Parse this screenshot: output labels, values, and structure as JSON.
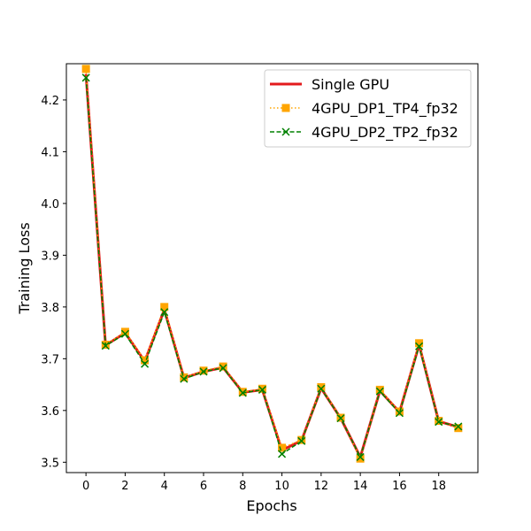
{
  "chart_data": {
    "type": "line",
    "xlabel": "Epochs",
    "ylabel": "Training Loss",
    "xlim": [
      -1,
      20
    ],
    "ylim": [
      3.48,
      4.27
    ],
    "xticks": [
      0,
      2,
      4,
      6,
      8,
      10,
      12,
      14,
      16,
      18
    ],
    "yticks": [
      3.5,
      3.6,
      3.7,
      3.8,
      3.9,
      4.0,
      4.1,
      4.2
    ],
    "ytick_labels": [
      "3.5",
      "3.6",
      "3.7",
      "3.8",
      "3.9",
      "4.0",
      "4.1",
      "4.2"
    ],
    "grid": false,
    "legend_position": "top-right",
    "x": [
      0,
      1,
      2,
      3,
      4,
      5,
      6,
      7,
      8,
      9,
      10,
      11,
      12,
      13,
      14,
      15,
      16,
      17,
      18,
      19
    ],
    "series": [
      {
        "name": "Single GPU",
        "color": "#e31a1c",
        "style": "solid",
        "marker": "none",
        "values": [
          4.25,
          3.726,
          3.75,
          3.695,
          3.795,
          3.663,
          3.675,
          3.683,
          3.635,
          3.64,
          3.523,
          3.542,
          3.643,
          3.585,
          3.51,
          3.638,
          3.597,
          3.727,
          3.579,
          3.568
        ]
      },
      {
        "name": "4GPU_DP1_TP4_fp32",
        "color": "#ffa500",
        "style": "dotted",
        "marker": "square",
        "values": [
          4.26,
          3.727,
          3.752,
          3.697,
          3.8,
          3.664,
          3.677,
          3.685,
          3.636,
          3.642,
          3.528,
          3.543,
          3.645,
          3.586,
          3.507,
          3.64,
          3.598,
          3.73,
          3.58,
          3.566
        ]
      },
      {
        "name": "4GPU_DP2_TP2_fp32",
        "color": "#008000",
        "style": "dashed",
        "marker": "x",
        "values": [
          4.243,
          3.725,
          3.748,
          3.69,
          3.79,
          3.661,
          3.675,
          3.682,
          3.634,
          3.64,
          3.516,
          3.541,
          3.642,
          3.585,
          3.51,
          3.637,
          3.595,
          3.724,
          3.578,
          3.569
        ]
      }
    ]
  }
}
